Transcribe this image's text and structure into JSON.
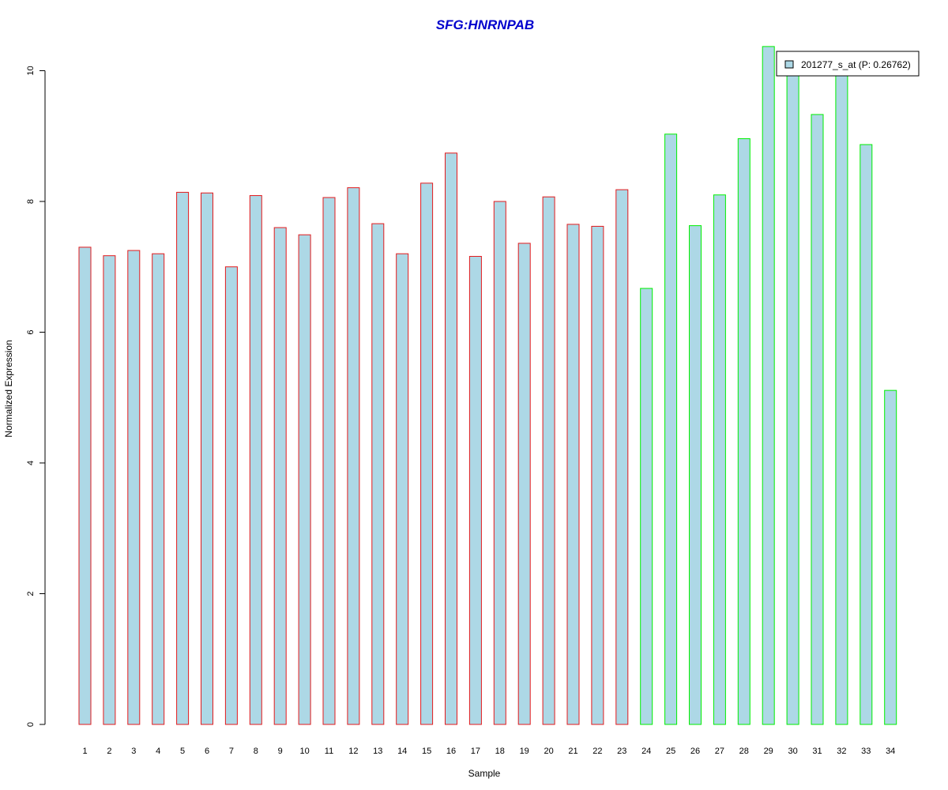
{
  "chart_data": {
    "type": "bar",
    "title": "SFG:HNRNPAB",
    "xlabel": "Sample",
    "ylabel": "Normalized Expression",
    "categories": [
      "1",
      "2",
      "3",
      "4",
      "5",
      "6",
      "7",
      "8",
      "9",
      "10",
      "11",
      "12",
      "13",
      "14",
      "15",
      "16",
      "17",
      "18",
      "19",
      "20",
      "21",
      "22",
      "23",
      "24",
      "25",
      "26",
      "27",
      "28",
      "29",
      "30",
      "31",
      "32",
      "33",
      "34"
    ],
    "series": [
      {
        "name": "201277_s_at (P: 0.26762)",
        "values": [
          7.3,
          7.17,
          7.25,
          7.2,
          8.14,
          8.13,
          7.0,
          8.09,
          7.6,
          7.49,
          8.06,
          8.21,
          7.66,
          7.2,
          8.28,
          8.74,
          7.16,
          8.0,
          7.36,
          8.07,
          7.65,
          7.62,
          8.18,
          6.67,
          9.03,
          7.63,
          8.1,
          8.96,
          10.37,
          10.02,
          9.33,
          9.98,
          8.87,
          5.11
        ]
      }
    ],
    "groups": [
      "red",
      "red",
      "red",
      "red",
      "red",
      "red",
      "red",
      "red",
      "red",
      "red",
      "red",
      "red",
      "red",
      "red",
      "red",
      "red",
      "red",
      "red",
      "red",
      "red",
      "red",
      "red",
      "red",
      "green",
      "green",
      "green",
      "green",
      "green",
      "green",
      "green",
      "green",
      "green",
      "green",
      "green"
    ],
    "yticks": [
      0,
      2,
      4,
      6,
      8,
      10
    ],
    "ylim": [
      0,
      10.4
    ],
    "legend_position": "top-right",
    "colors": {
      "bar_fill": "#add8e6",
      "red_border": "#e31a1c",
      "green_border": "#00ee00",
      "title": "#0000cd",
      "legend_key_border": "#000000"
    }
  }
}
